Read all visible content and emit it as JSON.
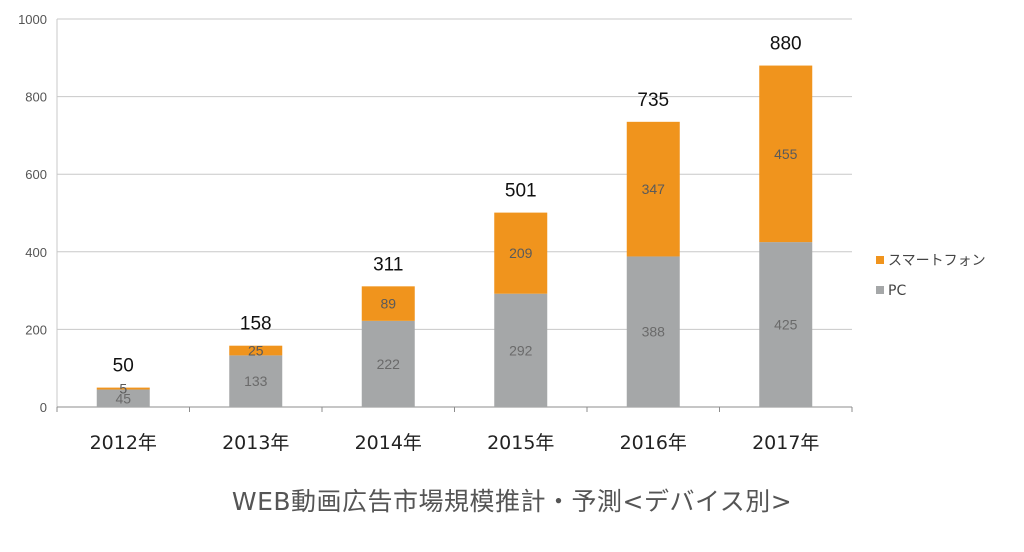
{
  "chart_data": {
    "type": "bar",
    "stacked": true,
    "title": "WEB動画広告市場規模推計・予測<デバイス別>",
    "categories": [
      "2012年",
      "2013年",
      "2014年",
      "2015年",
      "2016年",
      "2017年"
    ],
    "series": [
      {
        "name": "PC",
        "color": "#a5a7a8",
        "values": [
          45,
          133,
          222,
          292,
          388,
          425
        ]
      },
      {
        "name": "スマートフォン",
        "color": "#f0941d",
        "values": [
          5,
          25,
          89,
          209,
          347,
          455
        ]
      }
    ],
    "totals": [
      50,
      158,
      311,
      501,
      735,
      880
    ],
    "ylim": [
      0,
      1000
    ],
    "yticks": [
      0,
      200,
      400,
      600,
      800,
      1000
    ],
    "grid": true,
    "legend_position": "right"
  }
}
